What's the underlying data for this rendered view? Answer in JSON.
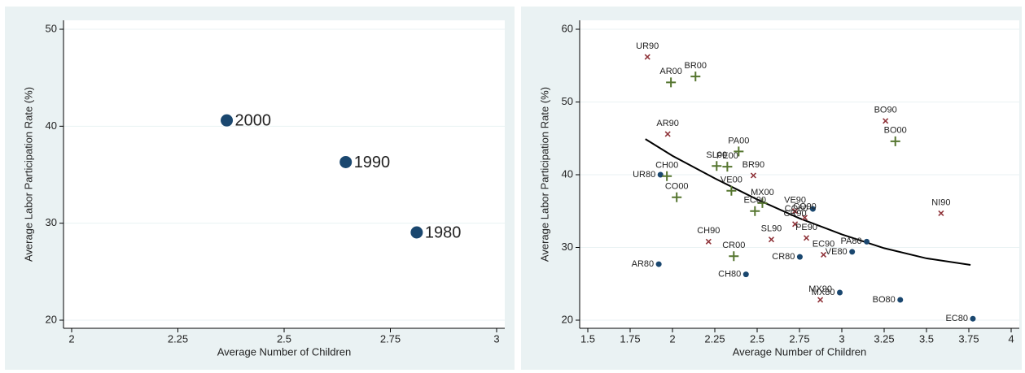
{
  "chart_data": [
    {
      "type": "scatter",
      "x_label": "Average Number of Children",
      "y_label": "Average Labor Participation Rate (%)",
      "xlim": [
        2,
        3
      ],
      "xticks": [
        2,
        2.25,
        2.5,
        2.75,
        3
      ],
      "ylim": [
        20,
        50
      ],
      "yticks": [
        20,
        30,
        40,
        50
      ],
      "grid": true,
      "color": "#1a476f",
      "x": [
        2.365,
        2.645,
        2.812
      ],
      "values": [
        40.6,
        36.3,
        29.05
      ],
      "labels": [
        "2000",
        "1990",
        "1980"
      ]
    },
    {
      "type": "scatter",
      "x_label": "Average Number of Children",
      "y_label": "Average Labor Participation Rate (%)",
      "xlim": [
        1.5,
        4
      ],
      "xticks": [
        1.5,
        1.75,
        2,
        2.25,
        2.5,
        2.75,
        3,
        3.25,
        3.5,
        3.75,
        4
      ],
      "ylim": [
        20,
        60
      ],
      "yticks": [
        20,
        30,
        40,
        50,
        60
      ],
      "grid": true,
      "series": [
        {
          "color": "#1a476f",
          "marker": "dot",
          "labels": [
            "UR80",
            "AR80",
            "CH80",
            "CR80",
            "CO80",
            "PA80",
            "VE80",
            "MX80",
            "BO80",
            "EC80"
          ],
          "x": [
            1.929,
            1.919,
            2.434,
            2.752,
            2.829,
            3.147,
            3.061,
            2.988,
            3.345,
            3.774
          ],
          "values": [
            40.0,
            27.7,
            26.3,
            28.7,
            35.3,
            30.8,
            29.4,
            23.8,
            22.8,
            20.2
          ]
        },
        {
          "color": "#90353b",
          "marker": "x",
          "labels": [
            "UR90",
            "AR90",
            "BR90",
            "BO90",
            "NI90",
            "VE90",
            "CO90",
            "CR90",
            "PE90",
            "SL90",
            "CH90",
            "EC90",
            "MX90"
          ],
          "x": [
            1.852,
            1.972,
            2.478,
            3.258,
            3.586,
            2.724,
            2.781,
            2.724,
            2.791,
            2.584,
            2.213,
            2.892,
            2.873
          ],
          "values": [
            56.2,
            45.6,
            39.9,
            47.4,
            34.7,
            35.0,
            34.1,
            33.2,
            31.3,
            31.1,
            30.8,
            29.0,
            22.8
          ]
        },
        {
          "color": "#55752f",
          "marker": "plus",
          "labels": [
            "AR00",
            "BR00",
            "PA00",
            "SL00",
            "PE00",
            "CH00",
            "VE00",
            "CO00",
            "MX00",
            "EC00",
            "CR00",
            "BO00"
          ],
          "x": [
            1.991,
            2.136,
            2.391,
            2.261,
            2.324,
            1.967,
            2.348,
            2.025,
            2.531,
            2.487,
            2.362,
            3.316
          ],
          "values": [
            52.7,
            53.5,
            43.2,
            41.2,
            41.1,
            39.8,
            37.8,
            36.9,
            36.1,
            35.0,
            28.8,
            44.6
          ]
        }
      ],
      "fit_line": {
        "color": "#000000",
        "x": [
          1.84,
          2.0,
          2.25,
          2.5,
          2.75,
          3.0,
          3.25,
          3.5,
          3.76
        ],
        "values": [
          44.9,
          42.6,
          39.5,
          36.6,
          34.0,
          31.8,
          29.9,
          28.5,
          27.6
        ]
      }
    }
  ]
}
